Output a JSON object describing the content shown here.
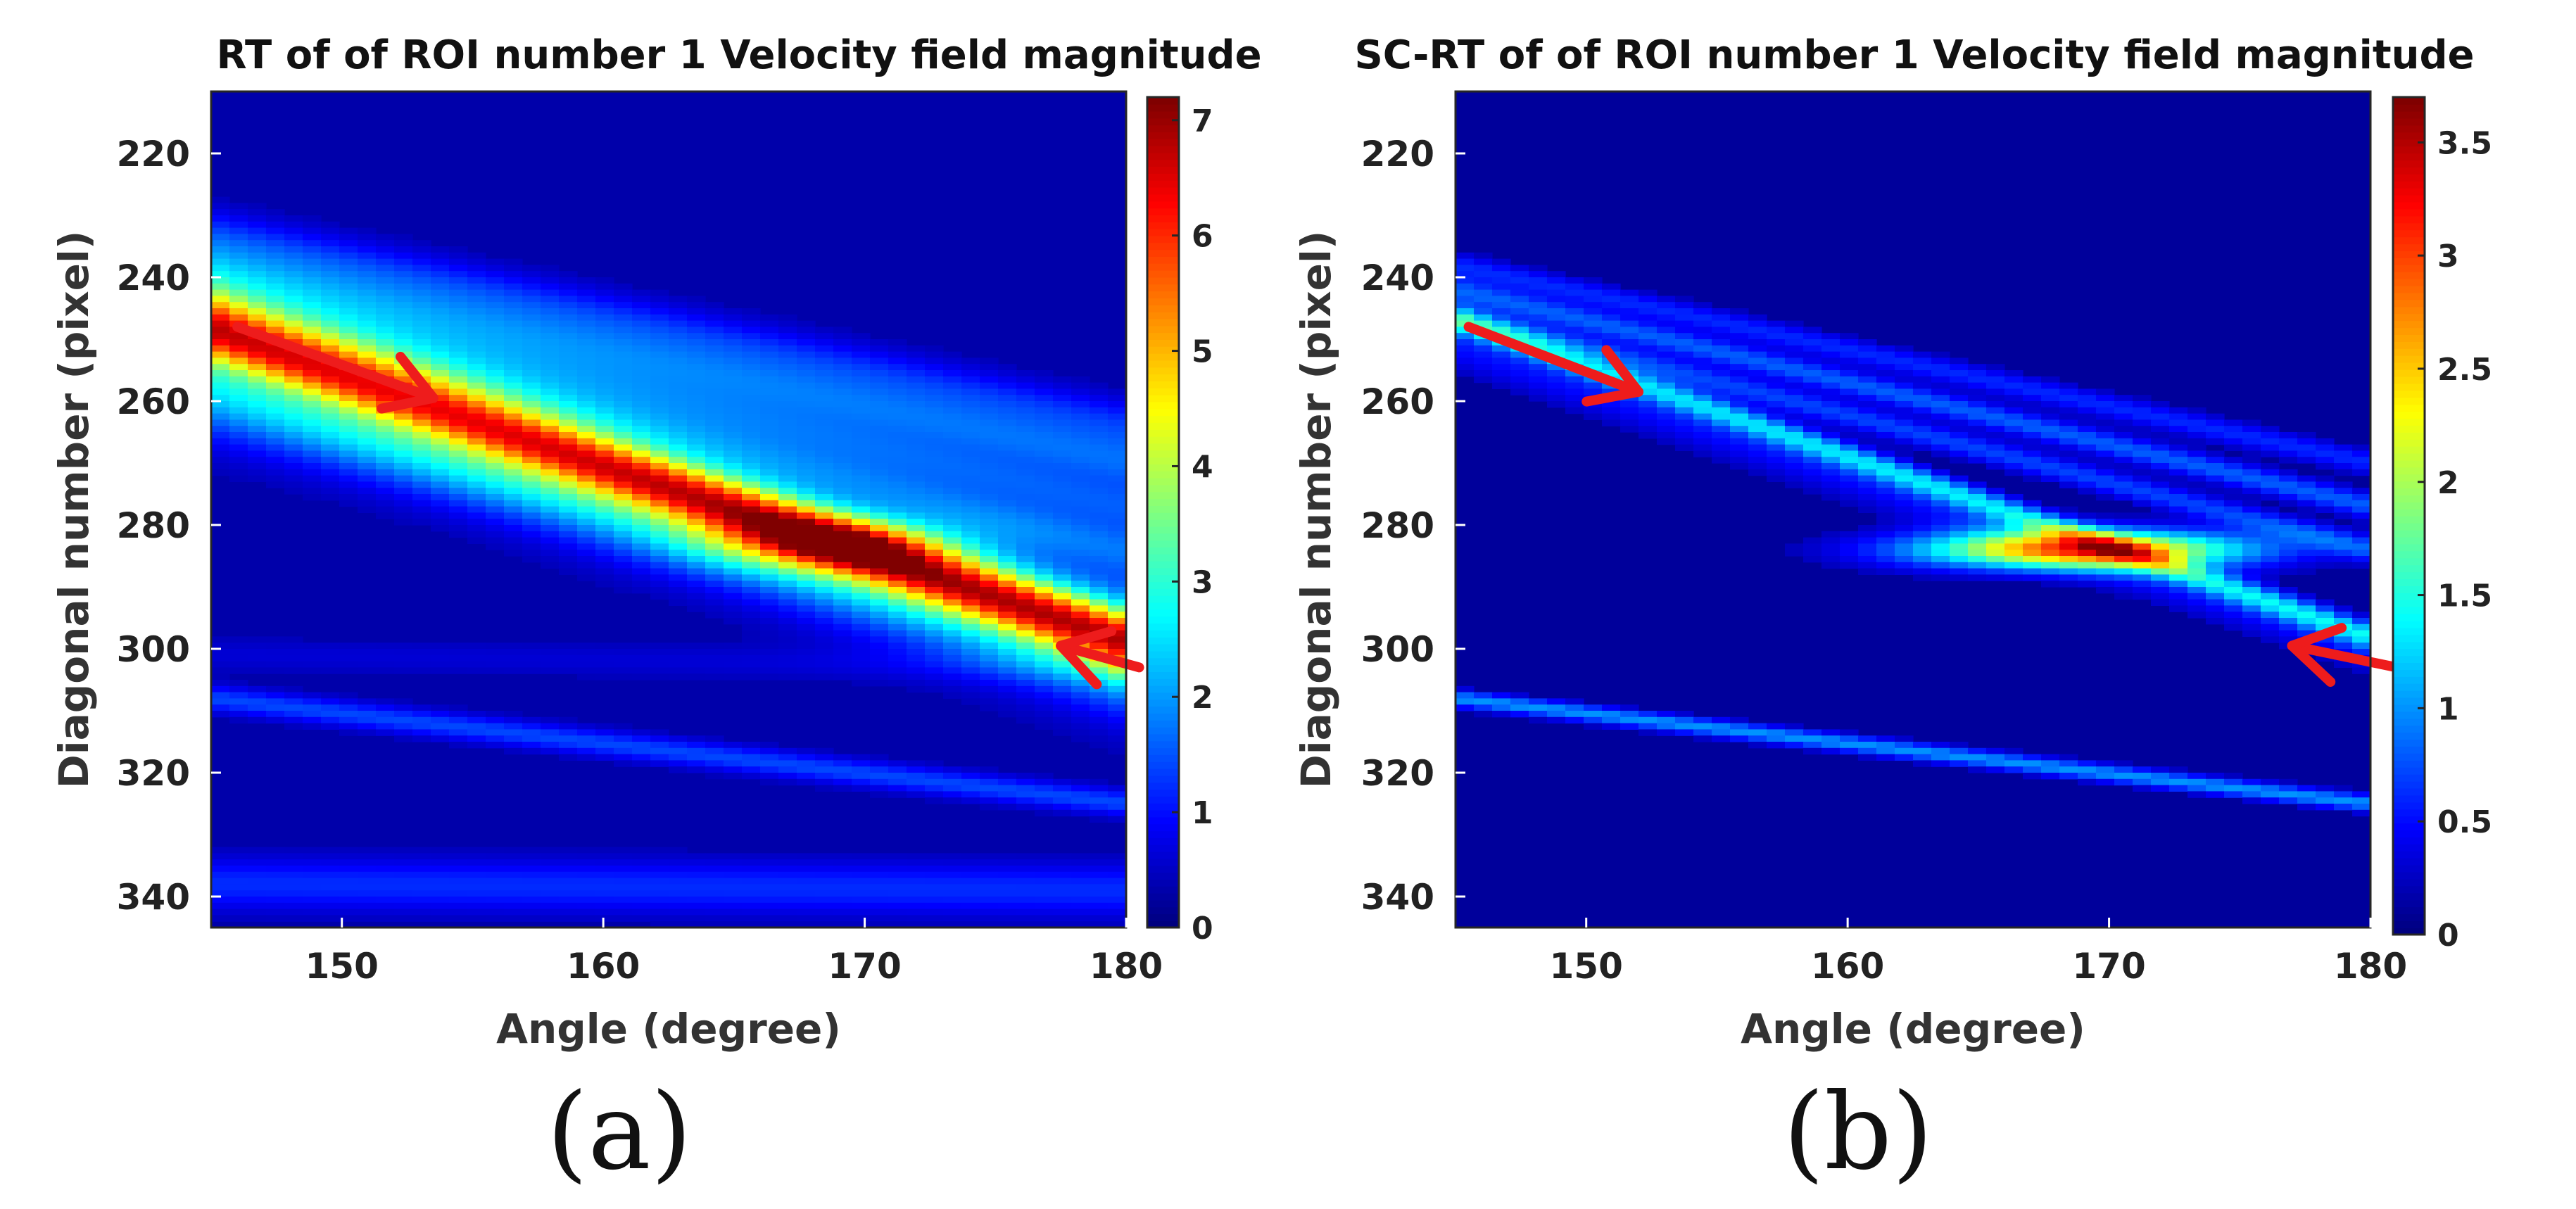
{
  "chart_data": [
    {
      "type": "heatmap",
      "id": "a",
      "title": "RT of of ROI number 1 Velocity field magnitude",
      "xlabel": "Angle (degree)",
      "ylabel": "Diagonal number (pixel)",
      "xlim": [
        145,
        180
      ],
      "ylim": [
        210,
        345
      ],
      "xticks": [
        150,
        160,
        170,
        180
      ],
      "yticks": [
        220,
        240,
        260,
        280,
        300,
        320,
        340
      ],
      "colorbar": {
        "min": 0,
        "max": 7.2,
        "ticks": [
          0,
          1,
          2,
          3,
          4,
          5,
          6,
          7
        ],
        "colormap": "jet"
      },
      "background": 0.3,
      "features": [
        {
          "d0": 247,
          "d1": 298,
          "amp": 2.4,
          "sigma": 3.5
        },
        {
          "d0": 250,
          "d1": 299,
          "amp": 2.2,
          "sigma": 3.0
        },
        {
          "d0": 252,
          "d1": 301,
          "amp": 1.6,
          "sigma": 7.0
        },
        {
          "d0": 238,
          "d1": 270,
          "amp": 1.2,
          "sigma": 3.0
        },
        {
          "d0": 242,
          "d1": 277,
          "amp": 1.1,
          "sigma": 3.0
        },
        {
          "d0": 246,
          "d1": 284,
          "amp": 1.1,
          "sigma": 3.0
        },
        {
          "d0": 233,
          "d1": 264,
          "amp": 0.9,
          "sigma": 3.0
        },
        {
          "d0": 258,
          "d1": 304,
          "amp": 0.8,
          "sigma": 4.0
        },
        {
          "d0": 262,
          "d1": 291,
          "amp": 0.5,
          "sigma": 5.0
        },
        {
          "d0": 308,
          "d1": 325,
          "amp": 1.1,
          "sigma": 1.5
        },
        {
          "d0": 301,
          "d1": 303,
          "amp": 0.3,
          "sigma": 2.0
        },
        {
          "d0": 338,
          "d1": 339,
          "amp": 0.9,
          "sigma": 3.0
        }
      ],
      "peaks": [
        {
          "angle": 169,
          "d": 283,
          "amp": 2.0,
          "sa": 3.5,
          "sd": 3.0
        }
      ],
      "arrows": [
        {
          "from": [
            146,
            248
          ],
          "to": [
            153.5,
            259.5
          ]
        },
        {
          "from": [
            180.5,
            303
          ],
          "to": [
            177.5,
            299.5
          ]
        }
      ],
      "panel_label": "(a)"
    },
    {
      "type": "heatmap",
      "id": "b",
      "title": "SC-RT of of ROI number 1 Velocity field magnitude",
      "xlabel": "Angle (degree)",
      "ylabel": "Diagonal number (pixel)",
      "xlim": [
        145,
        180
      ],
      "ylim": [
        210,
        345
      ],
      "xticks": [
        150,
        160,
        170,
        180
      ],
      "yticks": [
        220,
        240,
        260,
        280,
        300,
        320,
        340
      ],
      "colorbar": {
        "min": 0,
        "max": 3.7,
        "ticks": [
          0,
          0.5,
          1,
          1.5,
          2,
          2.5,
          3,
          3.5
        ],
        "colormap": "jet"
      },
      "background": 0.1,
      "features": [
        {
          "d0": 247,
          "d1": 298,
          "amp": 1.0,
          "sigma": 1.5
        },
        {
          "d0": 251,
          "d1": 300,
          "amp": 0.4,
          "sigma": 3.0
        },
        {
          "d0": 238,
          "d1": 270,
          "amp": 0.5,
          "sigma": 1.5
        },
        {
          "d0": 242,
          "d1": 277,
          "amp": 0.7,
          "sigma": 1.5
        },
        {
          "d0": 246,
          "d1": 284,
          "amp": 0.6,
          "sigma": 1.5
        },
        {
          "d0": 308,
          "d1": 325,
          "amp": 0.9,
          "sigma": 1.0
        }
      ],
      "peaks": [
        {
          "angle": 169,
          "d": 284,
          "amp": 2.6,
          "sa": 4.5,
          "sd": 2.2
        }
      ],
      "arrows": [
        {
          "from": [
            145.5,
            248
          ],
          "to": [
            152,
            258.5
          ]
        },
        {
          "from": [
            181,
            303
          ],
          "to": [
            177,
            299.5
          ]
        }
      ],
      "panel_label": "(b)"
    }
  ]
}
